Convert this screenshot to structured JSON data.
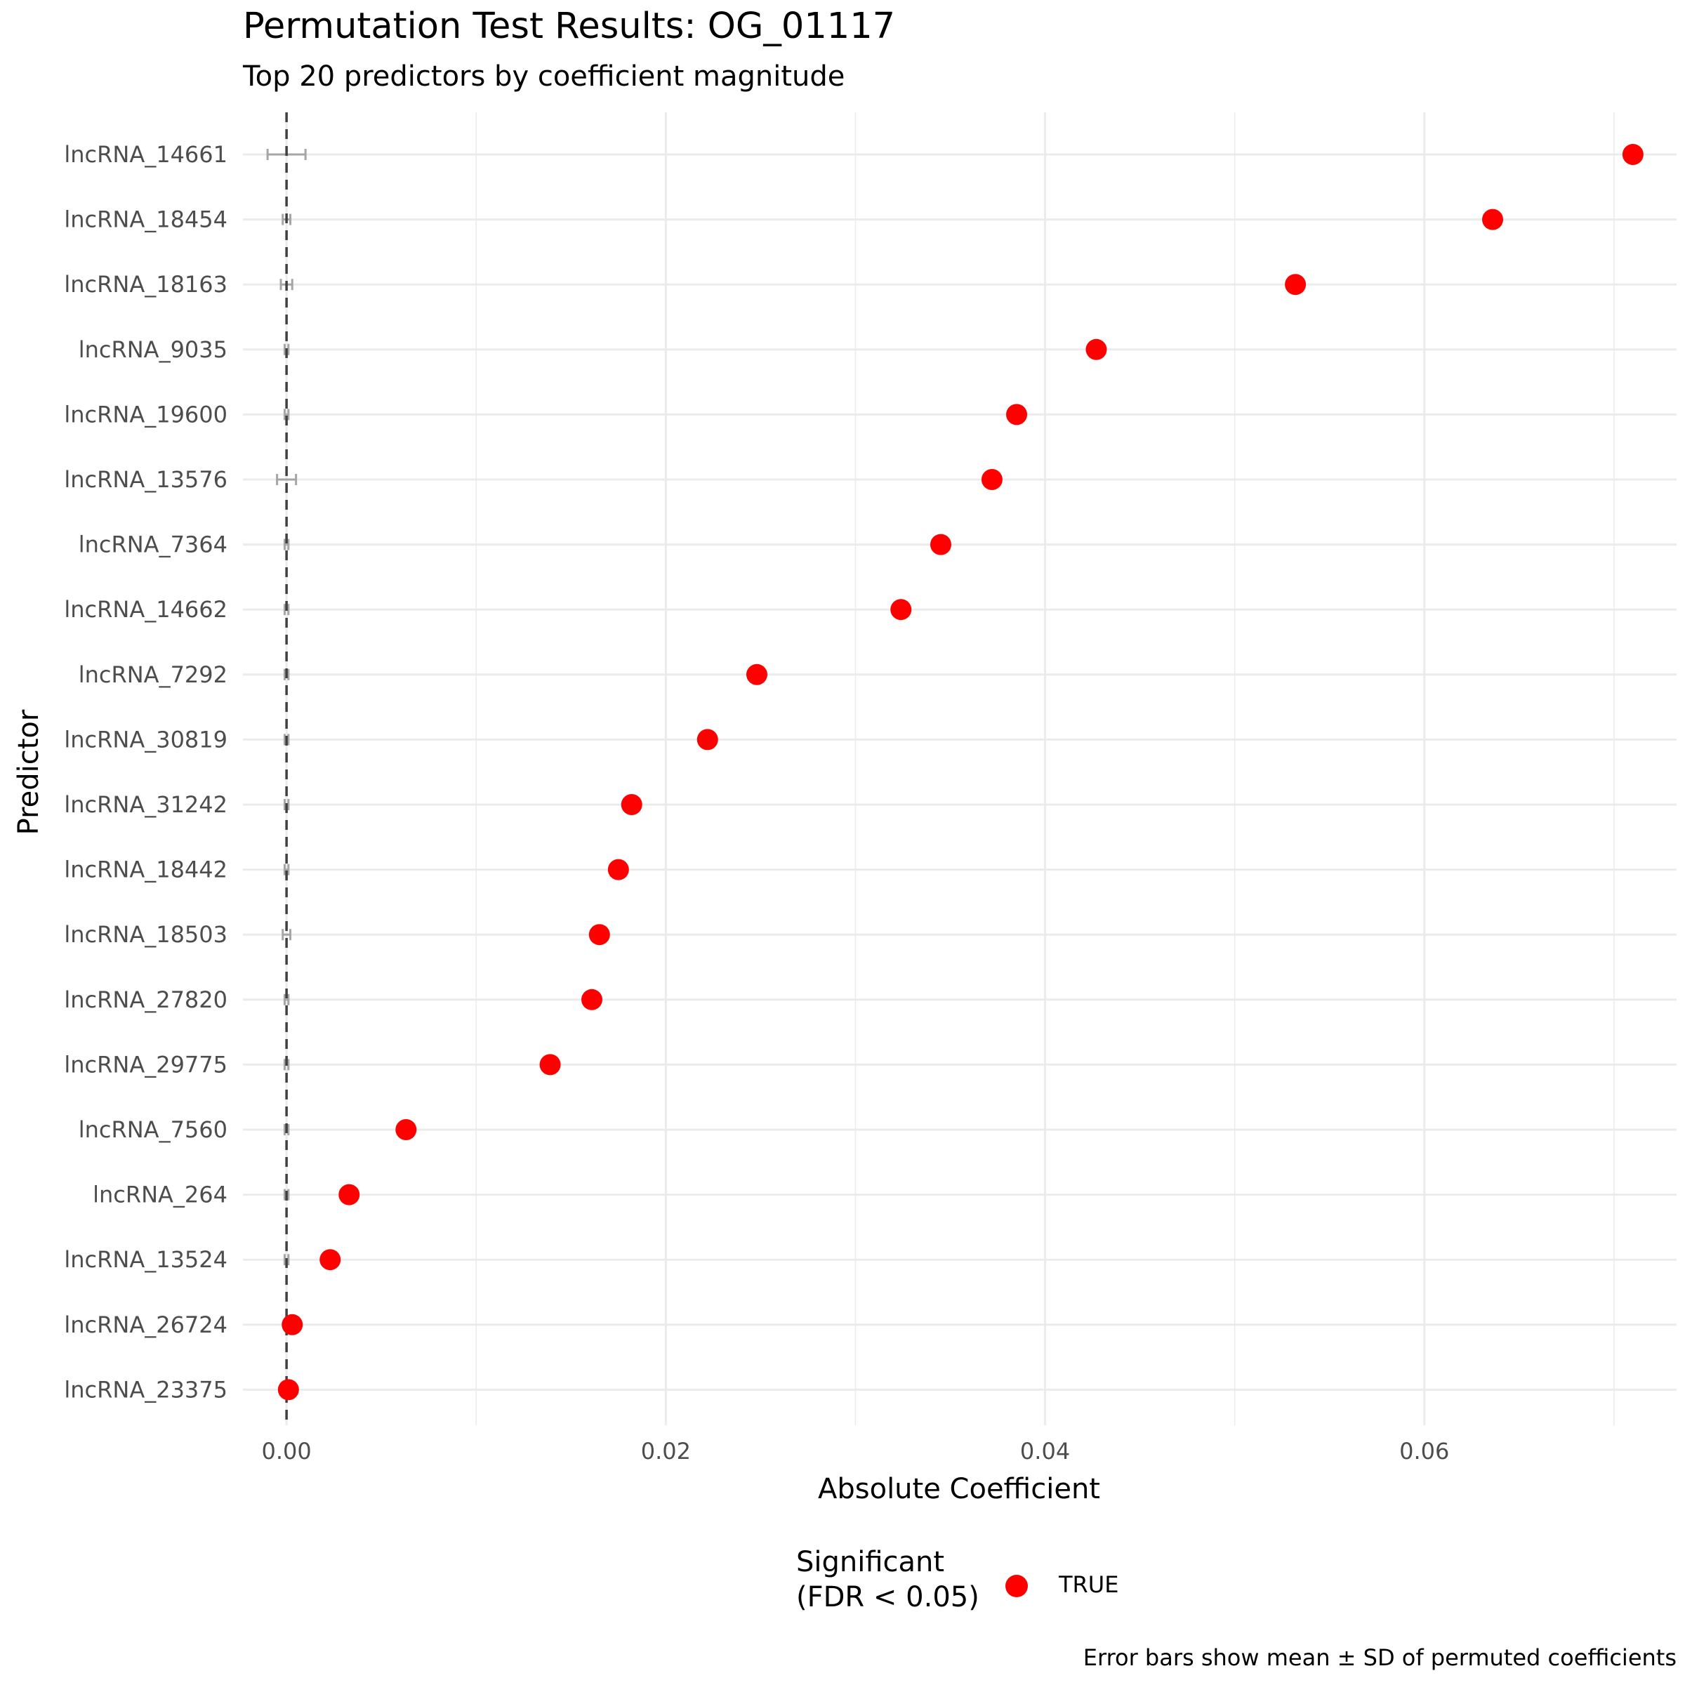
{
  "chart_data": {
    "type": "scatter",
    "title": "Permutation Test Results: OG_01117",
    "subtitle": "Top 20 predictors by coefficient magnitude",
    "xlabel": "Absolute Coefficient",
    "ylabel": "Predictor",
    "xlim": [
      -0.0023,
      0.0733
    ],
    "x_ticks": [
      0.0,
      0.02,
      0.04,
      0.06
    ],
    "x_tick_labels": [
      "0.00",
      "0.02",
      "0.04",
      "0.06"
    ],
    "grid": true,
    "reference_line": {
      "x": 0,
      "style": "dashed"
    },
    "categories": [
      "lncRNA_14661",
      "lncRNA_18454",
      "lncRNA_18163",
      "lncRNA_9035",
      "lncRNA_19600",
      "lncRNA_13576",
      "lncRNA_7364",
      "lncRNA_14662",
      "lncRNA_7292",
      "lncRNA_30819",
      "lncRNA_31242",
      "lncRNA_18442",
      "lncRNA_18503",
      "lncRNA_27820",
      "lncRNA_29775",
      "lncRNA_7560",
      "lncRNA_264",
      "lncRNA_13524",
      "lncRNA_26724",
      "lncRNA_23375"
    ],
    "series": [
      {
        "name": "TRUE",
        "values": [
          0.071,
          0.0636,
          0.0532,
          0.0427,
          0.0385,
          0.0372,
          0.0345,
          0.0324,
          0.0248,
          0.0222,
          0.0182,
          0.0175,
          0.0165,
          0.0161,
          0.0139,
          0.0063,
          0.0033,
          0.0023,
          0.0003,
          0.0001
        ]
      }
    ],
    "permuted_mean": [
      0.0,
      0.0,
      0.0,
      0.0,
      0.0,
      0.0,
      0.0,
      0.0,
      0.0,
      0.0,
      0.0,
      0.0,
      0.0,
      0.0,
      0.0,
      0.0,
      0.0,
      0.0,
      0.0,
      0.0
    ],
    "permuted_sd": [
      0.001,
      0.0002,
      0.0003,
      0.0001,
      0.0001,
      0.0005,
      0.0001,
      0.0001,
      0.0001,
      0.0001,
      0.0001,
      0.0001,
      0.0002,
      0.0001,
      0.0001,
      0.0001,
      0.0001,
      0.0001,
      0.0001,
      0.0001
    ],
    "legend": {
      "title": "Significant\n(FDR < 0.05)",
      "entries": [
        "TRUE"
      ],
      "placement": "bottom"
    },
    "caption": "Error bars show mean ± SD of permuted coefficients"
  },
  "colors": {
    "point": "#ff0000",
    "grid": "#ebebeb",
    "errorbar": "#a6a6a6",
    "reference_line": "#404040",
    "tick_text": "#4d4d4d"
  }
}
